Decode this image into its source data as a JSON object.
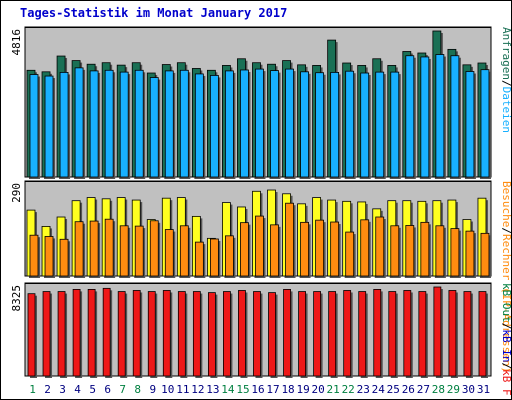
{
  "colors": {
    "frame": "#ffffff",
    "plot_bg": "#c0c0c0",
    "title": "#0000cc",
    "weekday_label": "#000080",
    "weekend_label": "#008040",
    "anfragen": "#1a7055",
    "dateien": "#18b0ff",
    "rechner": "#ffff20",
    "besuche": "#ff8c10",
    "kb": "#ee1818",
    "top_tick": "#000000"
  },
  "chart_data": {
    "type": "bar",
    "title": "Tages-Statistik im Monat January 2017",
    "categories": [
      "1",
      "2",
      "3",
      "4",
      "5",
      "6",
      "7",
      "8",
      "9",
      "10",
      "11",
      "12",
      "13",
      "14",
      "15",
      "16",
      "17",
      "18",
      "19",
      "20",
      "21",
      "22",
      "23",
      "24",
      "25",
      "26",
      "27",
      "28",
      "29",
      "30",
      "31"
    ],
    "weekend_days": [
      "1",
      "7",
      "8",
      "14",
      "15",
      "21",
      "22",
      "28",
      "29"
    ],
    "grid": true,
    "panels": [
      {
        "id": "requests",
        "ymax_label": "4816",
        "ylim": [
          0,
          4816
        ],
        "series": [
          {
            "name": "Anfragen",
            "values": [
              3520,
              3470,
              3990,
              3840,
              3720,
              3770,
              3690,
              3770,
              3430,
              3710,
              3770,
              3580,
              3520,
              3680,
              3900,
              3770,
              3720,
              3840,
              3700,
              3680,
              4516,
              3760,
              3680,
              3900,
              3680,
              4140,
              4090,
              4816,
              4210,
              3700,
              3760
            ]
          },
          {
            "name": "Dateien",
            "values": [
              3380,
              3330,
              3450,
              3600,
              3500,
              3520,
              3460,
              3520,
              3280,
              3500,
              3520,
              3400,
              3350,
              3500,
              3530,
              3560,
              3510,
              3560,
              3470,
              3440,
              3450,
              3490,
              3430,
              3460,
              3460,
              4000,
              3960,
              4040,
              4000,
              3480,
              3540
            ]
          }
        ]
      },
      {
        "id": "visits",
        "ymax_label": "290",
        "ylim": [
          0,
          290
        ],
        "series": [
          {
            "name": "Rechner (IP-Adressen)",
            "values": [
              210,
              158,
              188,
              240,
              250,
              246,
              250,
              242,
              180,
              248,
              250,
              190,
              120,
              234,
              220,
              270,
              274,
              262,
              230,
              250,
              242,
              238,
              236,
              214,
              240,
              240,
              238,
              240,
              242,
              180,
              248
            ]
          },
          {
            "name": "Besuche",
            "values": [
              130,
              126,
              117,
              173,
              175,
              181,
              160,
              159,
              176,
              148,
              160,
              108,
              118,
              128,
              170,
              191,
              163,
              232,
              171,
              178,
              172,
              140,
              179,
              188,
              160,
              161,
              171,
              160,
              151,
              143,
              136
            ]
          }
        ]
      },
      {
        "id": "traffic",
        "ymax_label": "8325",
        "ylim": [
          0,
          8325
        ],
        "series": [
          {
            "name": "kB F",
            "values": [
              7700,
              7900,
              7900,
              8100,
              8100,
              8200,
              7900,
              8000,
              7900,
              8000,
              7900,
              7900,
              7800,
              7900,
              8000,
              7900,
              7800,
              8100,
              7900,
              7900,
              7900,
              8000,
              7900,
              8100,
              7900,
              8000,
              7900,
              8325,
              8000,
              7900,
              7900
            ]
          }
        ]
      }
    ],
    "side_labels": {
      "requests": [
        {
          "text": "Anfragen",
          "color": "#1a7055"
        },
        {
          "text": "/",
          "color": "#000000"
        },
        {
          "text": "Dateien",
          "color": "#18b0ff"
        }
      ],
      "visits": [
        {
          "text": "Besuche",
          "color": "#ff8c10"
        },
        {
          "text": "/",
          "color": "#000000"
        },
        {
          "text": "Rechner (IP-Adressen)",
          "color": "#ff8c10"
        }
      ],
      "traffic": [
        {
          "text": "kB Out",
          "color": "#008040"
        },
        {
          "text": "/",
          "color": "#000000"
        },
        {
          "text": "kB In",
          "color": "#0000cc"
        },
        {
          "text": "/",
          "color": "#000000"
        },
        {
          "text": "kB F",
          "color": "#ee1818"
        }
      ]
    }
  }
}
